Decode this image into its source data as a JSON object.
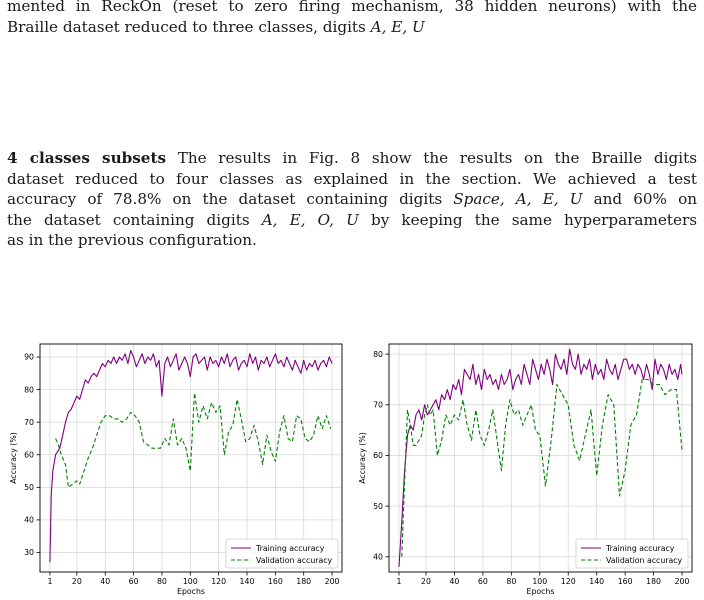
{
  "text": {
    "p1_line1": "mented in ReckOn (reset to zero firing mechanism, 38 hidden neurons) with the",
    "p1_line2_pre": "Braille dataset reduced to three classes, digits ",
    "p1_line2_digits": "A, E, U",
    "p2_heading": "4 classes subsets",
    "p2_line1_rest": " The results in Fig. 8 show the results on the Braille digits",
    "p2_line2": "dataset reduced to four classes as explained in the section. We achieved a test",
    "p2_line3_a": "accuracy of 78.8% on the dataset containing digits ",
    "p2_line3_b": "Space, A, E, U",
    "p2_line3_c": " and 60% on",
    "p2_line4_a": "the dataset containing digits ",
    "p2_line4_b": "A, E, O, U",
    "p2_line4_c": " by keeping the same hyperparameters",
    "p2_line5": "as in the previous configuration."
  },
  "chart_data": [
    {
      "type": "line",
      "xlabel": "Epochs",
      "ylabel": "Accuracy (%)",
      "xlim": [
        -6,
        207
      ],
      "ylim": [
        24,
        94
      ],
      "xticks": [
        1,
        20,
        40,
        60,
        80,
        100,
        120,
        140,
        160,
        180,
        200
      ],
      "yticks": [
        30,
        40,
        50,
        60,
        70,
        80,
        90
      ],
      "grid": true,
      "legend_position": "lower-right",
      "series": [
        {
          "name": "Training accuracy",
          "color": "#800080",
          "dash": "solid",
          "x": [
            1,
            2,
            3,
            5,
            8,
            10,
            12,
            14,
            16,
            18,
            20,
            22,
            24,
            26,
            28,
            30,
            32,
            34,
            36,
            38,
            40,
            42,
            44,
            46,
            48,
            50,
            52,
            54,
            56,
            58,
            60,
            62,
            64,
            66,
            68,
            70,
            72,
            74,
            76,
            78,
            80,
            82,
            84,
            86,
            88,
            90,
            92,
            94,
            96,
            98,
            100,
            102,
            104,
            106,
            108,
            110,
            112,
            114,
            116,
            118,
            120,
            122,
            124,
            126,
            128,
            130,
            132,
            134,
            136,
            138,
            140,
            142,
            144,
            146,
            148,
            150,
            152,
            154,
            156,
            158,
            160,
            162,
            164,
            166,
            168,
            170,
            172,
            174,
            176,
            178,
            180,
            182,
            184,
            186,
            188,
            190,
            192,
            194,
            196,
            198,
            200
          ],
          "y": [
            27,
            48,
            55,
            60,
            62,
            66,
            70,
            73,
            74,
            76,
            78,
            77,
            80,
            83,
            82,
            84,
            85,
            84,
            86,
            88,
            87,
            89,
            88,
            90,
            88,
            90,
            89,
            91,
            88,
            92,
            90,
            87,
            89,
            91,
            88,
            90,
            89,
            91,
            87,
            89,
            78,
            88,
            90,
            87,
            89,
            91,
            86,
            88,
            90,
            88,
            84,
            90,
            91,
            88,
            89,
            90,
            86,
            90,
            88,
            89,
            87,
            90,
            88,
            91,
            87,
            89,
            90,
            86,
            88,
            89,
            87,
            91,
            88,
            90,
            86,
            89,
            88,
            90,
            87,
            89,
            91,
            88,
            89,
            87,
            90,
            88,
            86,
            89,
            87,
            85,
            89,
            86,
            88,
            87,
            89,
            86,
            88,
            89,
            87,
            90,
            88
          ]
        },
        {
          "name": "Validation accuracy",
          "color": "#008000",
          "dash": "dashed",
          "x": [
            5,
            7,
            9,
            12,
            14,
            17,
            20,
            22,
            25,
            28,
            31,
            34,
            37,
            40,
            43,
            46,
            49,
            52,
            55,
            58,
            61,
            64,
            67,
            70,
            73,
            76,
            79,
            82,
            85,
            88,
            91,
            94,
            97,
            100,
            103,
            106,
            109,
            112,
            115,
            118,
            121,
            124,
            127,
            130,
            133,
            136,
            139,
            142,
            145,
            148,
            151,
            154,
            157,
            160,
            163,
            166,
            169,
            172,
            175,
            178,
            181,
            184,
            187,
            190,
            193,
            196,
            199
          ],
          "y": [
            65,
            63,
            60,
            57,
            50,
            51,
            52,
            51,
            55,
            59,
            62,
            66,
            70,
            72,
            72,
            71,
            71,
            70,
            71,
            73,
            72,
            70,
            64,
            63,
            62,
            62,
            62,
            65,
            63,
            71,
            63,
            65,
            62,
            55,
            79,
            70,
            75,
            71,
            76,
            73,
            75,
            60,
            67,
            69,
            77,
            71,
            64,
            65,
            69,
            64,
            57,
            66,
            61,
            58,
            67,
            72,
            65,
            64,
            72,
            71,
            65,
            64,
            66,
            72,
            68,
            72,
            68
          ]
        }
      ]
    },
    {
      "type": "line",
      "xlabel": "Epochs",
      "ylabel": "Accuracy (%)",
      "xlim": [
        -6,
        207
      ],
      "ylim": [
        37,
        82
      ],
      "xticks": [
        1,
        20,
        40,
        60,
        80,
        100,
        120,
        140,
        160,
        180,
        200
      ],
      "yticks": [
        40,
        50,
        60,
        70,
        80
      ],
      "grid": true,
      "legend_position": "lower-right",
      "series": [
        {
          "name": "Training accuracy",
          "color": "#800080",
          "dash": "solid",
          "x": [
            1,
            3,
            5,
            7,
            9,
            11,
            13,
            15,
            17,
            19,
            21,
            23,
            25,
            27,
            29,
            31,
            33,
            35,
            37,
            39,
            41,
            43,
            45,
            47,
            49,
            51,
            53,
            55,
            57,
            59,
            61,
            63,
            65,
            67,
            69,
            71,
            73,
            75,
            77,
            79,
            81,
            83,
            85,
            87,
            89,
            91,
            93,
            95,
            97,
            99,
            101,
            103,
            105,
            107,
            109,
            111,
            113,
            115,
            117,
            119,
            121,
            123,
            125,
            127,
            129,
            131,
            133,
            135,
            137,
            139,
            141,
            143,
            145,
            147,
            149,
            151,
            153,
            155,
            157,
            159,
            161,
            163,
            165,
            167,
            169,
            171,
            173,
            175,
            177,
            179,
            181,
            183,
            185,
            187,
            189,
            191,
            193,
            195,
            197,
            199,
            200
          ],
          "y": [
            38,
            47,
            57,
            64,
            66,
            65,
            68,
            69,
            67,
            70,
            68,
            69,
            70,
            71,
            69,
            72,
            71,
            73,
            71,
            74,
            73,
            75,
            72,
            77,
            76,
            75,
            78,
            74,
            76,
            73,
            77,
            75,
            76,
            74,
            75,
            73,
            76,
            74,
            75,
            77,
            73,
            75,
            76,
            74,
            78,
            76,
            74,
            79,
            77,
            75,
            78,
            76,
            79,
            77,
            74,
            80,
            78,
            77,
            79,
            76,
            81,
            78,
            77,
            80,
            76,
            78,
            77,
            79,
            75,
            78,
            76,
            77,
            75,
            79,
            77,
            76,
            78,
            75,
            77,
            79,
            79,
            77,
            78,
            76,
            78,
            77,
            75,
            78,
            76,
            73,
            79,
            76,
            78,
            77,
            75,
            78,
            76,
            77,
            75,
            78,
            76
          ]
        },
        {
          "name": "Validation accuracy",
          "color": "#008000",
          "dash": "dashed",
          "x": [
            3,
            5,
            7,
            9,
            11,
            13,
            15,
            17,
            19,
            21,
            23,
            25,
            28,
            31,
            34,
            37,
            40,
            43,
            46,
            49,
            52,
            55,
            58,
            61,
            64,
            67,
            70,
            73,
            76,
            79,
            82,
            85,
            88,
            91,
            94,
            97,
            100,
            104,
            108,
            112,
            116,
            120,
            124,
            128,
            132,
            136,
            140,
            144,
            148,
            152,
            156,
            160,
            164,
            168,
            172,
            176,
            180,
            184,
            188,
            192,
            196,
            200
          ],
          "y": [
            40,
            55,
            69,
            66,
            62,
            62,
            63,
            64,
            68,
            70,
            68,
            69,
            60,
            63,
            68,
            66,
            68,
            67,
            71,
            66,
            63,
            69,
            64,
            62,
            65,
            69,
            63,
            57,
            66,
            71,
            68,
            69,
            66,
            68,
            70,
            65,
            64,
            54,
            63,
            74,
            72,
            70,
            62,
            59,
            64,
            69,
            56,
            66,
            72,
            70,
            52,
            57,
            66,
            68,
            75,
            75,
            74,
            74,
            72,
            73,
            73,
            61
          ]
        }
      ]
    }
  ]
}
